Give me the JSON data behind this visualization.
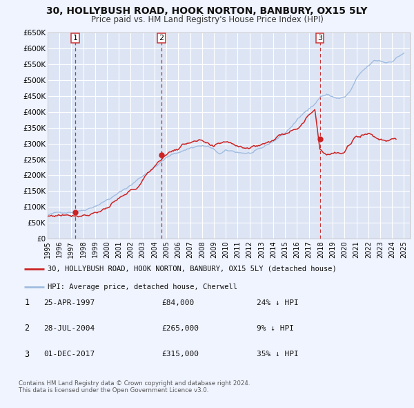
{
  "title": "30, HOLLYBUSH ROAD, HOOK NORTON, BANBURY, OX15 5LY",
  "subtitle": "Price paid vs. HM Land Registry's House Price Index (HPI)",
  "hpi_label": "HPI: Average price, detached house, Cherwell",
  "property_label": "30, HOLLYBUSH ROAD, HOOK NORTON, BANBURY, OX15 5LY (detached house)",
  "background_color": "#f0f4ff",
  "plot_bg_color": "#dde5f5",
  "grid_color": "#ffffff",
  "hpi_color": "#a0bce0",
  "property_color": "#cc2222",
  "vline_color": "#cc3333",
  "ylim": [
    0,
    650000
  ],
  "yticks": [
    0,
    50000,
    100000,
    150000,
    200000,
    250000,
    300000,
    350000,
    400000,
    450000,
    500000,
    550000,
    600000,
    650000
  ],
  "ytick_labels": [
    "£0",
    "£50K",
    "£100K",
    "£150K",
    "£200K",
    "£250K",
    "£300K",
    "£350K",
    "£400K",
    "£450K",
    "£500K",
    "£550K",
    "£600K",
    "£650K"
  ],
  "xlim_start": 1995.0,
  "xlim_end": 2025.5,
  "xticks": [
    1995,
    1996,
    1997,
    1998,
    1999,
    2000,
    2001,
    2002,
    2003,
    2004,
    2005,
    2006,
    2007,
    2008,
    2009,
    2010,
    2011,
    2012,
    2013,
    2014,
    2015,
    2016,
    2017,
    2018,
    2019,
    2020,
    2021,
    2022,
    2023,
    2024,
    2025
  ],
  "sales": [
    {
      "num": 1,
      "date_label": "25-APR-1997",
      "date_x": 1997.32,
      "price": 84000,
      "price_label": "£84,000",
      "pct": "24%",
      "direction": "↓"
    },
    {
      "num": 2,
      "date_label": "28-JUL-2004",
      "date_x": 2004.57,
      "price": 265000,
      "price_label": "£265,000",
      "pct": "9%",
      "direction": "↓"
    },
    {
      "num": 3,
      "date_label": "01-DEC-2017",
      "date_x": 2017.92,
      "price": 315000,
      "price_label": "£315,000",
      "pct": "35%",
      "direction": "↓"
    }
  ],
  "footer_line1": "Contains HM Land Registry data © Crown copyright and database right 2024.",
  "footer_line2": "This data is licensed under the Open Government Licence v3.0.",
  "hpi_anchors_t": [
    1995.0,
    1996.0,
    1997.0,
    1998.0,
    1999.0,
    2000.0,
    2001.0,
    2002.0,
    2003.0,
    2004.0,
    2005.0,
    2006.0,
    2007.0,
    2007.7,
    2008.5,
    2009.5,
    2010.0,
    2011.0,
    2012.0,
    2013.0,
    2014.0,
    2015.0,
    2016.0,
    2016.7,
    2017.0,
    2017.5,
    2018.0,
    2018.5,
    2019.0,
    2019.5,
    2020.0,
    2020.5,
    2021.0,
    2021.5,
    2022.0,
    2022.5,
    2023.0,
    2023.5,
    2024.0,
    2024.5,
    2025.0
  ],
  "hpi_anchors_v": [
    75000,
    80000,
    88000,
    97000,
    115000,
    135000,
    155000,
    180000,
    210000,
    240000,
    268000,
    285000,
    300000,
    308000,
    305000,
    278000,
    285000,
    280000,
    278000,
    285000,
    308000,
    335000,
    375000,
    400000,
    415000,
    430000,
    455000,
    460000,
    452000,
    448000,
    450000,
    468000,
    505000,
    525000,
    540000,
    555000,
    555000,
    550000,
    558000,
    572000,
    585000
  ],
  "prop_anchors_t": [
    1995.0,
    1996.0,
    1997.32,
    1998.5,
    2000.0,
    2001.5,
    2002.5,
    2003.5,
    2004.57,
    2005.5,
    2006.5,
    2007.2,
    2008.0,
    2009.0,
    2010.0,
    2011.0,
    2012.0,
    2013.0,
    2014.0,
    2015.0,
    2016.0,
    2016.8,
    2017.5,
    2017.92,
    2018.5,
    2019.0,
    2020.0,
    2020.8,
    2021.5,
    2022.0,
    2022.8,
    2023.5,
    2024.3
  ],
  "prop_anchors_v": [
    70000,
    76000,
    84000,
    95000,
    120000,
    148000,
    168000,
    215000,
    265000,
    290000,
    308000,
    325000,
    318000,
    285000,
    302000,
    292000,
    295000,
    305000,
    325000,
    345000,
    375000,
    405000,
    438000,
    315000,
    305000,
    310000,
    305000,
    348000,
    365000,
    372000,
    355000,
    352000,
    368000
  ]
}
